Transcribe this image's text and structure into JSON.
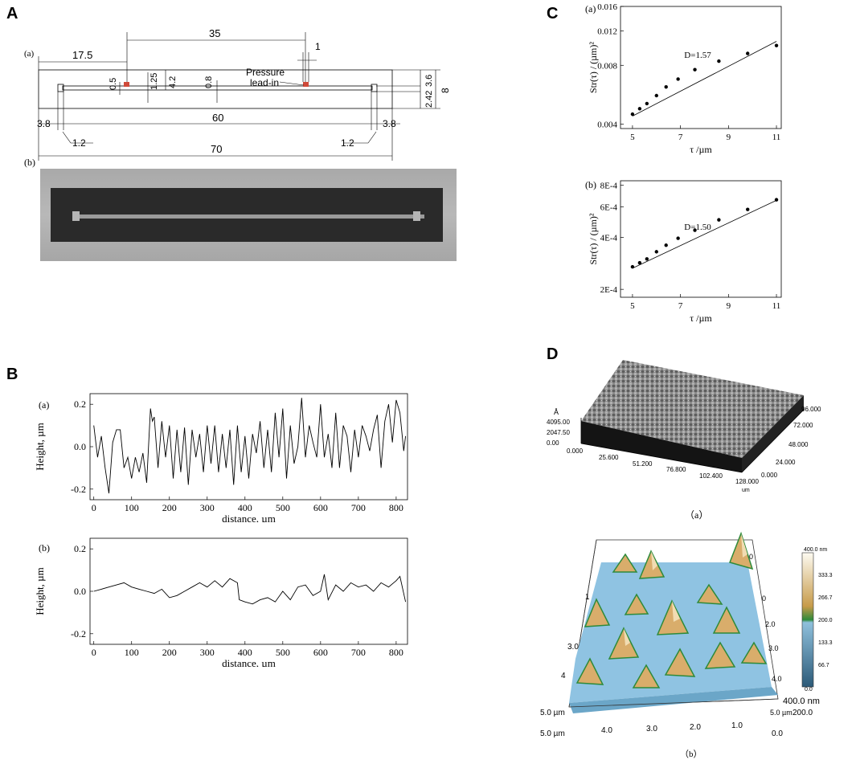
{
  "panels": {
    "A": {
      "letter": "A",
      "sub_a": "(a)",
      "sub_b": "(b)",
      "dims": {
        "d35": "35",
        "d17_5": "17.5",
        "d1": "1",
        "d0_5": "0.5",
        "d1_25": "1.25",
        "d4_2": "4.2",
        "d0_8": "0.8",
        "d3_6": "3.6",
        "d8": "8",
        "d2_42": "2.42",
        "d3_8_left": "3.8",
        "d60": "60",
        "d3_8_right": "3.8",
        "d1_2_left": "1.2",
        "d1_2_right": "1.2",
        "d70": "70"
      },
      "pressure_label_1": "Pressure",
      "pressure_label_2": "lead-in"
    },
    "B": {
      "letter": "B",
      "sub_a": "(a)",
      "sub_b": "(b)"
    },
    "C": {
      "letter": "C",
      "sub_a": "(a)",
      "sub_b": "(b)"
    },
    "D": {
      "letter": "D",
      "caption_a": "（a）",
      "caption_b": "（b）",
      "afm_a": {
        "z_unit": "Å",
        "z_ticks": [
          "4095.00",
          "2047.50",
          "0.00"
        ],
        "x_ticks": [
          "0.000",
          "25.600",
          "51.200",
          "76.800",
          "102.400",
          "128.000"
        ],
        "y_ticks": [
          "24.000",
          "48.000",
          "72.000",
          "96.000",
          "0.000"
        ],
        "unit": "um"
      },
      "afm_b": {
        "colorbar_ticks": [
          "400.0 nm",
          "333.3",
          "266.7",
          "200.0",
          "133.3",
          "66.7",
          "0.0"
        ],
        "x_ticks": [
          "5.0 µm",
          "4.0",
          "3.0",
          "2.0",
          "1.0",
          "0.0"
        ],
        "left_ticks": [
          "5.0 µm",
          "4",
          "3.0",
          "1"
        ],
        "right_ticks": [
          "0",
          "2.0",
          "3.0",
          "4.0",
          "5.0 µm"
        ],
        "back_ticks": [
          "0"
        ],
        "z_label": "400.0 nm",
        "z_mid": "200.0"
      }
    }
  },
  "chart_data": [
    {
      "id": "B-a",
      "type": "line",
      "xlabel": "distance, µm",
      "ylabel": "Height, µm",
      "xlim": [
        -10,
        830
      ],
      "ylim": [
        -0.25,
        0.25
      ],
      "x_ticks": [
        "0",
        "100",
        "200",
        "300",
        "400",
        "500",
        "600",
        "700",
        "800"
      ],
      "y_ticks": [
        "0.2",
        "0.0",
        "-0.2"
      ],
      "x": [
        0,
        10,
        20,
        30,
        40,
        50,
        60,
        70,
        80,
        90,
        100,
        110,
        120,
        130,
        140,
        150,
        155,
        160,
        170,
        180,
        190,
        200,
        210,
        220,
        230,
        240,
        250,
        260,
        270,
        280,
        290,
        300,
        310,
        320,
        330,
        340,
        350,
        360,
        370,
        380,
        390,
        400,
        410,
        420,
        430,
        440,
        450,
        460,
        470,
        480,
        490,
        500,
        510,
        520,
        530,
        540,
        550,
        560,
        570,
        580,
        590,
        600,
        610,
        620,
        630,
        640,
        650,
        660,
        670,
        680,
        690,
        700,
        710,
        720,
        730,
        740,
        750,
        760,
        770,
        780,
        790,
        800,
        810,
        820,
        825
      ],
      "y": [
        0.1,
        -0.05,
        0.05,
        -0.1,
        -0.22,
        0.02,
        0.08,
        0.08,
        -0.1,
        -0.05,
        -0.15,
        -0.05,
        -0.12,
        -0.03,
        -0.17,
        0.18,
        0.12,
        0.14,
        -0.1,
        0.12,
        -0.05,
        0.1,
        -0.15,
        0.08,
        -0.12,
        0.09,
        -0.18,
        0.08,
        -0.05,
        0.06,
        -0.12,
        0.1,
        -0.08,
        0.1,
        -0.12,
        0.06,
        -0.1,
        0.08,
        -0.18,
        0.1,
        -0.12,
        0.05,
        -0.15,
        0.06,
        -0.03,
        0.12,
        -0.1,
        0.08,
        -0.12,
        0.16,
        -0.05,
        0.18,
        -0.15,
        0.1,
        -0.08,
        0.0,
        0.23,
        -0.05,
        0.1,
        0.02,
        -0.05,
        0.2,
        -0.05,
        0.06,
        -0.1,
        0.16,
        -0.1,
        0.1,
        0.05,
        -0.12,
        0.08,
        -0.05,
        0.1,
        0.05,
        -0.02,
        0.08,
        0.15,
        -0.1,
        0.12,
        0.2,
        0.02,
        0.22,
        0.16,
        -0.02,
        0.05
      ]
    },
    {
      "id": "B-b",
      "type": "line",
      "xlabel": "distance, µm",
      "ylabel": "Height, µm",
      "xlim": [
        -10,
        830
      ],
      "ylim": [
        -0.25,
        0.25
      ],
      "x_ticks": [
        "0",
        "100",
        "200",
        "300",
        "400",
        "500",
        "600",
        "700",
        "800"
      ],
      "y_ticks": [
        "0.2",
        "0.0",
        "-0.2"
      ],
      "x": [
        0,
        20,
        40,
        60,
        80,
        100,
        120,
        140,
        160,
        180,
        200,
        220,
        240,
        260,
        280,
        300,
        320,
        340,
        360,
        380,
        385,
        400,
        420,
        440,
        460,
        480,
        500,
        520,
        540,
        560,
        580,
        600,
        610,
        620,
        640,
        660,
        680,
        700,
        720,
        740,
        760,
        780,
        800,
        810,
        825
      ],
      "y": [
        0.0,
        0.01,
        0.02,
        0.03,
        0.04,
        0.02,
        0.01,
        0.0,
        -0.01,
        0.01,
        -0.03,
        -0.02,
        0.0,
        0.02,
        0.04,
        0.02,
        0.05,
        0.02,
        0.06,
        0.04,
        -0.04,
        -0.05,
        -0.06,
        -0.04,
        -0.03,
        -0.05,
        0.0,
        -0.04,
        0.02,
        0.03,
        -0.02,
        0.0,
        0.08,
        -0.04,
        0.03,
        0.0,
        0.04,
        0.02,
        0.03,
        0.0,
        0.04,
        0.02,
        0.05,
        0.07,
        -0.05
      ]
    },
    {
      "id": "C-a",
      "type": "scatter",
      "xlabel": "τ /µm",
      "ylabel": "Str(τ) / (µm)²",
      "log_y": true,
      "xlim": [
        4.5,
        11.2
      ],
      "ylim": [
        0.0038,
        0.016
      ],
      "x_ticks": [
        "5",
        "7",
        "9",
        "11"
      ],
      "y_ticks": [
        "0.016",
        "0.012",
        "0.008",
        "0.004"
      ],
      "annotation": "D=1.57",
      "x": [
        5.0,
        5.3,
        5.6,
        6.0,
        6.4,
        6.9,
        7.6,
        8.6,
        9.8,
        11.0
      ],
      "y": [
        0.0045,
        0.0048,
        0.0051,
        0.0056,
        0.0062,
        0.0068,
        0.0076,
        0.0084,
        0.0092,
        0.0101
      ],
      "fit": {
        "x": [
          5.0,
          11.0
        ],
        "y": [
          0.0044,
          0.0106
        ]
      }
    },
    {
      "id": "C-b",
      "type": "scatter",
      "xlabel": "τ /µm",
      "ylabel": "Str(τ) / (µm)²",
      "log_y": true,
      "xlim": [
        4.5,
        11.2
      ],
      "ylim": [
        0.00018,
        0.00085
      ],
      "x_ticks": [
        "5",
        "7",
        "9",
        "11"
      ],
      "y_ticks": [
        "8E-4",
        "6E-4",
        "4E-4",
        "2E-4"
      ],
      "annotation": "D=1.50",
      "x": [
        5.0,
        5.3,
        5.6,
        6.0,
        6.4,
        6.9,
        7.6,
        8.6,
        9.8,
        11.0
      ],
      "y": [
        0.00027,
        0.000285,
        0.0003,
        0.00033,
        0.00036,
        0.000395,
        0.00044,
        0.000505,
        0.00058,
        0.00066
      ],
      "fit": {
        "x": [
          5.0,
          11.0
        ],
        "y": [
          0.000265,
          0.000655
        ]
      }
    }
  ]
}
